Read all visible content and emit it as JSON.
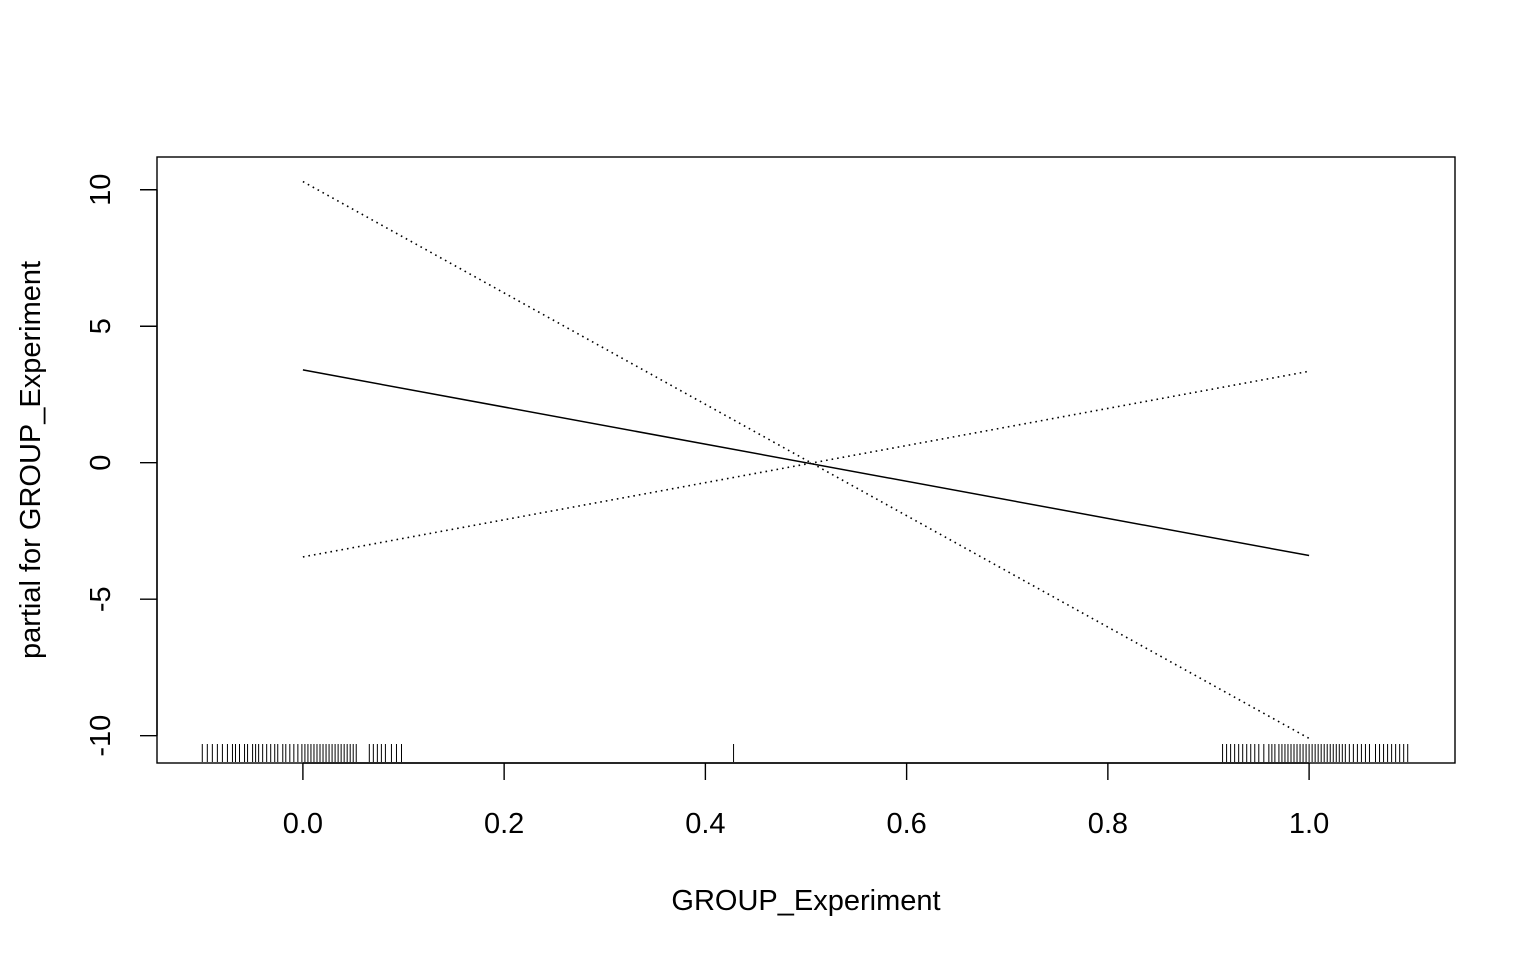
{
  "chart_data": {
    "type": "line",
    "title": "",
    "xlabel": "GROUP_Experiment",
    "ylabel": "partial for GROUP_Experiment",
    "xlim": [
      -0.145,
      1.145
    ],
    "ylim": [
      -11.0,
      11.2
    ],
    "x_ticks": [
      {
        "value": 0.0,
        "label": "0.0"
      },
      {
        "value": 0.2,
        "label": "0.2"
      },
      {
        "value": 0.4,
        "label": "0.4"
      },
      {
        "value": 0.6,
        "label": "0.6"
      },
      {
        "value": 0.8,
        "label": "0.8"
      },
      {
        "value": 1.0,
        "label": "1.0"
      }
    ],
    "y_ticks": [
      {
        "value": 10,
        "label": "10"
      },
      {
        "value": 5,
        "label": "5"
      },
      {
        "value": 0,
        "label": "0"
      },
      {
        "value": -5,
        "label": "-5"
      },
      {
        "value": -10,
        "label": "-10"
      }
    ],
    "grid": false,
    "legend": "none",
    "series": [
      {
        "style": "solid",
        "x": [
          0.0,
          1.0
        ],
        "y": [
          3.4,
          -3.4
        ]
      },
      {
        "style": "dotted",
        "x": [
          0.0,
          1.0
        ],
        "y": [
          10.3,
          -10.1
        ]
      },
      {
        "style": "dotted",
        "x": [
          0.0,
          1.0
        ],
        "y": [
          -3.45,
          3.35
        ]
      }
    ],
    "rug": [
      -0.1,
      -0.095,
      -0.09,
      -0.085,
      -0.08,
      -0.075,
      -0.07,
      -0.067,
      -0.063,
      -0.058,
      -0.055,
      -0.05,
      -0.047,
      -0.044,
      -0.04,
      -0.036,
      -0.032,
      -0.028,
      -0.025,
      -0.02,
      -0.017,
      -0.013,
      -0.009,
      -0.005,
      -0.001,
      0.002,
      0.005,
      0.008,
      0.011,
      0.014,
      0.017,
      0.02,
      0.023,
      0.026,
      0.029,
      0.032,
      0.035,
      0.038,
      0.041,
      0.044,
      0.047,
      0.05,
      0.053,
      0.066,
      0.07,
      0.074,
      0.078,
      0.082,
      0.088,
      0.093,
      0.098,
      0.428,
      0.914,
      0.918,
      0.922,
      0.926,
      0.93,
      0.934,
      0.938,
      0.942,
      0.946,
      0.95,
      0.955,
      0.96,
      0.963,
      0.966,
      0.97,
      0.973,
      0.976,
      0.979,
      0.982,
      0.985,
      0.988,
      0.991,
      0.994,
      0.997,
      1.0,
      1.003,
      1.006,
      1.009,
      1.012,
      1.015,
      1.018,
      1.021,
      1.024,
      1.027,
      1.03,
      1.033,
      1.036,
      1.04,
      1.044,
      1.048,
      1.052,
      1.056,
      1.06,
      1.066,
      1.07,
      1.074,
      1.078,
      1.082,
      1.086,
      1.09,
      1.094,
      1.098
    ]
  }
}
